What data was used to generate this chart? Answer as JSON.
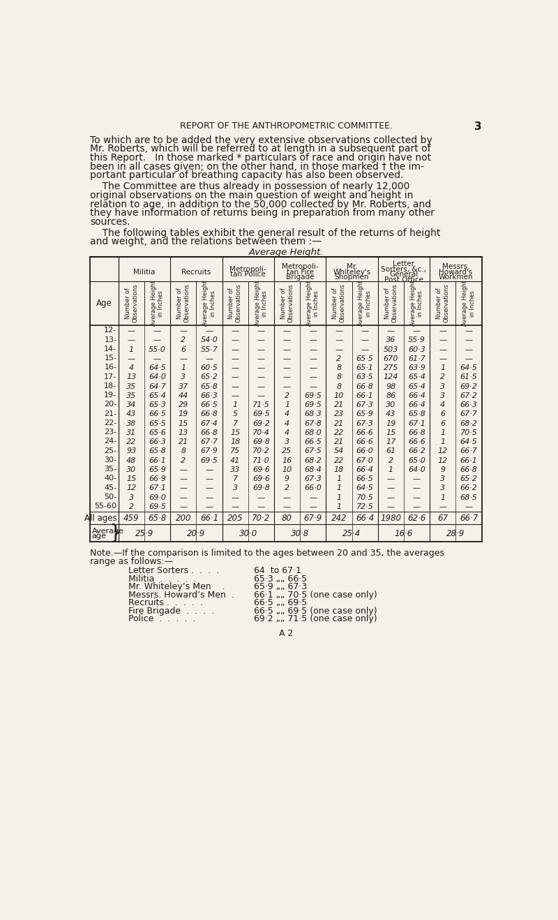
{
  "background_color": "#f5f0e8",
  "header_title": "REPORT OF THE ANTHROPOMETRIC COMMITTEE.",
  "page_number": "3",
  "table_title": "Average Height.",
  "column_groups": [
    "Militia",
    "Recruits",
    "Metropoli-\ntan Police",
    "Metropoli-\ntan Fire\nBrigade",
    "Mr.\nWhiteley's\nShopmen",
    "Letter\nSorters, &c.,\nGeneral\nPost Office",
    "Messrs.\nHoward's\nWorkmen"
  ],
  "age_rows": [
    [
      "12-",
      "",
      "",
      "",
      "",
      "",
      "",
      "",
      "",
      "",
      "",
      "",
      "",
      "",
      ""
    ],
    [
      "13-",
      "",
      "",
      "2",
      "54·0",
      "",
      "",
      "",
      "",
      "",
      "",
      "36",
      "55·9",
      "",
      ""
    ],
    [
      "14-",
      "1",
      "55·0",
      "6",
      "55·7",
      "",
      "",
      "",
      "",
      "",
      "",
      "503",
      "60·3",
      "",
      ""
    ],
    [
      "15-",
      "",
      "",
      "",
      "",
      "",
      "",
      "",
      "",
      "2",
      "65·5",
      "670",
      "61·7",
      "",
      ""
    ],
    [
      "16-",
      "4",
      "64·5",
      "1",
      "60·5",
      "",
      "",
      "",
      "",
      "8",
      "65·1",
      "275",
      "63·9",
      "1",
      "64·5"
    ],
    [
      "17-",
      "13",
      "64·0",
      "3",
      "65·2",
      "",
      "",
      "",
      "",
      "8",
      "63·5",
      "124",
      "65·4",
      "2",
      "61·5"
    ],
    [
      "18-",
      "35",
      "64·7",
      "37",
      "65·8",
      "",
      "",
      "",
      "",
      "8",
      "66·8",
      "98",
      "65·4",
      "3",
      "69·2"
    ],
    [
      "19-",
      "35",
      "65·4",
      "44",
      "66·3",
      "",
      "",
      "2",
      "69·5",
      "10",
      "66·1",
      "86",
      "66·4",
      "3",
      "67·2"
    ],
    [
      "20-",
      "34",
      "65·3",
      "29",
      "66·5",
      "1",
      "71·5",
      "1",
      "69·5",
      "21",
      "67·3",
      "30",
      "66·4",
      "4",
      "66·3"
    ],
    [
      "21-",
      "43",
      "66·5",
      "19",
      "66·8",
      "5",
      "69·5",
      "4",
      "68·3",
      "23",
      "65·9",
      "43",
      "65·8",
      "6",
      "67·7"
    ],
    [
      "22-",
      "38",
      "65·5",
      "15",
      "67·4",
      "7",
      "69·2",
      "4",
      "67·8",
      "21",
      "67·3",
      "19",
      "67·1",
      "6",
      "68·2"
    ],
    [
      "23-",
      "31",
      "65·6",
      "13",
      "66·8",
      "15",
      "70·4",
      "4",
      "68·0",
      "22",
      "66·6",
      "15",
      "66·8",
      "1",
      "70·5"
    ],
    [
      "24-",
      "22",
      "66·3",
      "21",
      "67·7",
      "18",
      "69·8",
      "3",
      "66·5",
      "21",
      "66·6",
      "17",
      "66·6",
      "1",
      "64·5"
    ],
    [
      "25-",
      "93",
      "65·8",
      "8",
      "67·9",
      "75",
      "70·2",
      "25",
      "67·5",
      "54",
      "66·0",
      "61",
      "66·2",
      "12",
      "66·7"
    ],
    [
      "30-",
      "48",
      "66·1",
      "2",
      "69·5",
      "41",
      "71·0",
      "16",
      "68·2",
      "22",
      "67·0",
      "2",
      "65·0",
      "12",
      "66·1"
    ],
    [
      "35-",
      "30",
      "65·9",
      "",
      "",
      "33",
      "69·6",
      "10",
      "68·4",
      "18",
      "66·4",
      "1",
      "64·0",
      "9",
      "66·8"
    ],
    [
      "40-",
      "15",
      "66·9",
      "",
      "",
      "7",
      "69·6",
      "9",
      "67·3",
      "1",
      "66·5",
      "",
      "",
      "3",
      "65·2"
    ],
    [
      "45-",
      "12",
      "67·1",
      "",
      "",
      "3",
      "69·8",
      "2",
      "66·0",
      "1",
      "64·5",
      "",
      "",
      "3",
      "66·2"
    ],
    [
      "50-",
      "3",
      "69·0",
      "",
      "",
      "",
      "",
      "",
      "",
      "1",
      "70·5",
      "",
      "",
      "1",
      "68·5"
    ],
    [
      "55-60",
      "2",
      "69·5",
      "",
      "",
      "",
      "",
      "",
      "",
      "1",
      "72·5",
      "",
      "",
      "",
      ""
    ]
  ],
  "all_ages_row": [
    "All ages",
    "459",
    "65·8",
    "200",
    "66·1",
    "205",
    "70·2",
    "80",
    "67·9",
    "242",
    "66·4",
    "1980",
    "62·6",
    "67",
    "66·7"
  ],
  "avg_age_row": [
    "Average\nage",
    "25·9",
    "20·9",
    "30·0",
    "30·8",
    "25·4",
    "16·6",
    "28·9"
  ],
  "note_text": "Note.—If the comparison is limited to the ages between 20 and 35, the averages\nrange as follows:—",
  "note_items": [
    [
      "Letter Sorters .  .  .  .",
      "64  to 67·1"
    ],
    [
      "Militia  .  .  .  .  .",
      "65·3 „„ 66·5"
    ],
    [
      "Mr. Whiteley’s Men    .",
      "65·9 „„ 67·3"
    ],
    [
      "Messrs. Howard’s Men  .",
      "66·1 „„ 70·5 (one case only)"
    ],
    [
      "Recruits .  .  .  .  .",
      "66·5 „„ 69·5"
    ],
    [
      "Fire Brigade  .  .  .  .",
      "66·5 „„ 69·5 (one case only)"
    ],
    [
      "Police  .  .  .  .  .",
      "69·2 „„ 71·5 (one case only)"
    ]
  ],
  "footer": "A 2"
}
